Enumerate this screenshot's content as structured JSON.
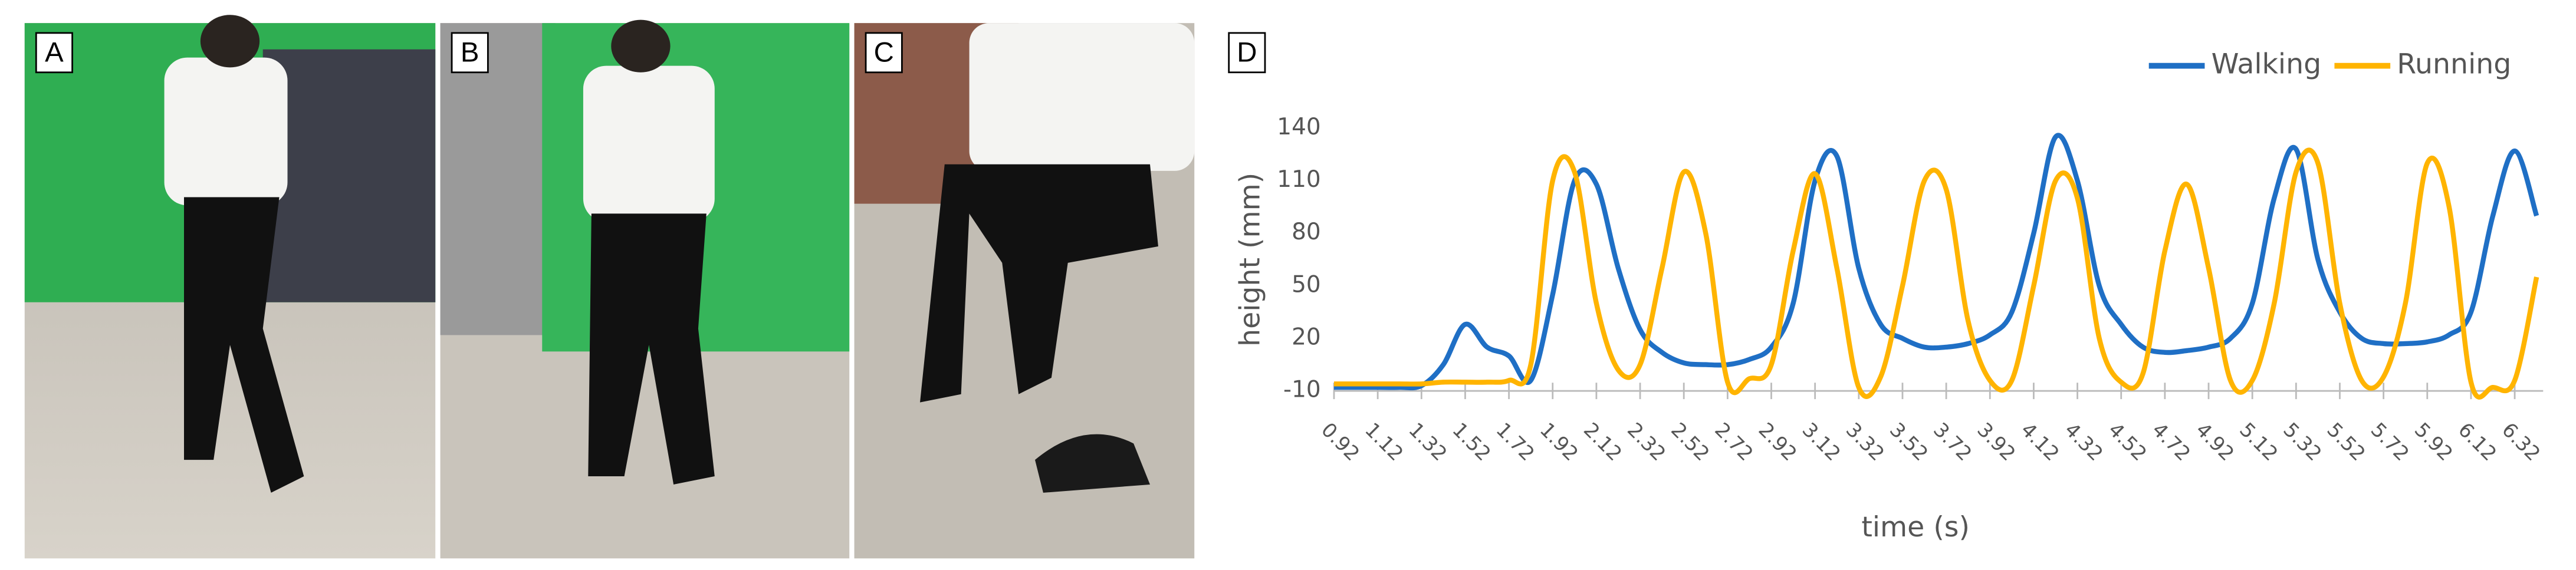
{
  "panel_labels": [
    "A",
    "B",
    "C",
    "D"
  ],
  "chart_data": {
    "type": "line",
    "ylabel": "height (mm)",
    "xlabel": "time (s)",
    "legend": "top-right",
    "grid": false,
    "xlim": [
      0.92,
      6.45
    ],
    "ylim": [
      -10,
      140
    ],
    "yticks": [
      -10,
      20,
      50,
      80,
      110,
      140
    ],
    "xticks": [
      0.92,
      1.12,
      1.32,
      1.52,
      1.72,
      1.92,
      2.12,
      2.32,
      2.52,
      2.72,
      2.92,
      3.12,
      3.32,
      3.52,
      3.72,
      3.92,
      4.12,
      4.32,
      4.52,
      4.72,
      4.92,
      5.12,
      5.32,
      5.52,
      5.72,
      5.92,
      6.12,
      6.32
    ],
    "x": [
      0.92,
      1.02,
      1.12,
      1.22,
      1.32,
      1.42,
      1.52,
      1.62,
      1.72,
      1.82,
      1.92,
      2.02,
      2.12,
      2.22,
      2.32,
      2.42,
      2.52,
      2.62,
      2.72,
      2.82,
      2.92,
      3.02,
      3.12,
      3.22,
      3.32,
      3.42,
      3.52,
      3.62,
      3.72,
      3.82,
      3.92,
      4.02,
      4.12,
      4.22,
      4.32,
      4.42,
      4.52,
      4.62,
      4.72,
      4.82,
      4.92,
      5.02,
      5.12,
      5.22,
      5.32,
      5.42,
      5.52,
      5.62,
      5.72,
      5.82,
      5.92,
      6.02,
      6.12,
      6.22,
      6.32,
      6.42
    ],
    "series": [
      {
        "name": "Walking",
        "color": "#1f6fc5",
        "values": [
          -8,
          -8,
          -8,
          -8,
          -7,
          5,
          28,
          15,
          10,
          -4,
          45,
          110,
          108,
          60,
          25,
          12,
          6,
          5,
          5,
          8,
          15,
          40,
          110,
          124,
          60,
          28,
          20,
          15,
          15,
          17,
          22,
          35,
          80,
          135,
          110,
          50,
          28,
          15,
          12,
          13,
          15,
          20,
          40,
          100,
          128,
          65,
          35,
          20,
          17,
          17,
          18,
          22,
          35,
          90,
          127,
          90
        ]
      },
      {
        "name": "Running",
        "color": "#ffb400",
        "values": [
          -6,
          -6,
          -6,
          -6,
          -6,
          -5,
          -5,
          -5,
          -4,
          5,
          110,
          115,
          40,
          2,
          5,
          60,
          115,
          80,
          -5,
          -3,
          5,
          70,
          114,
          60,
          -8,
          -2,
          50,
          110,
          105,
          30,
          -4,
          -4,
          50,
          110,
          100,
          20,
          -5,
          0,
          70,
          108,
          60,
          -4,
          -4,
          40,
          115,
          120,
          40,
          -4,
          -2,
          40,
          120,
          95,
          -5,
          -8,
          -4,
          55
        ]
      }
    ]
  }
}
